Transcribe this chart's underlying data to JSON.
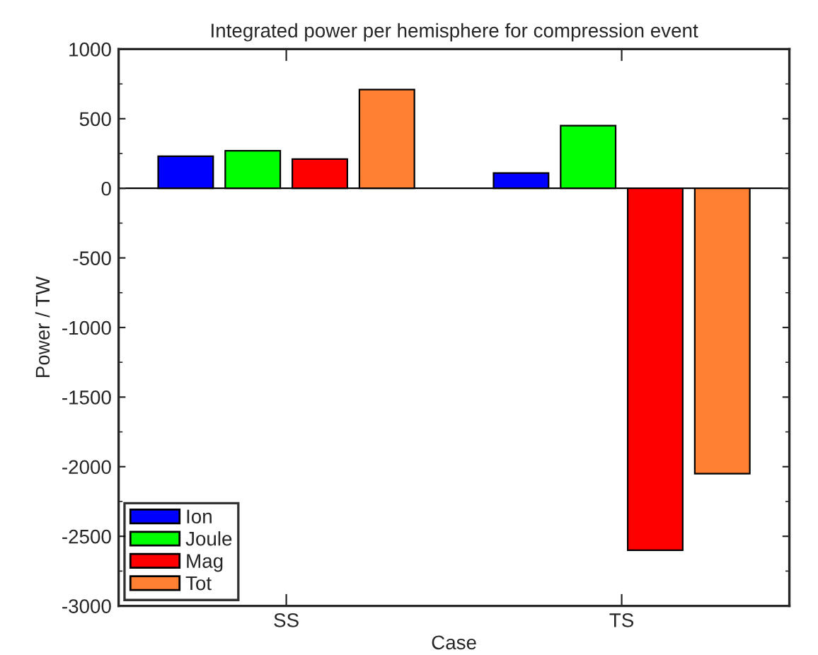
{
  "chart_data": {
    "type": "bar",
    "title": "Integrated power per hemisphere for compression event",
    "xlabel": "Case",
    "ylabel": "Power / TW",
    "categories": [
      "SS",
      "TS"
    ],
    "series": [
      {
        "name": "Ion",
        "color": "#0000ff",
        "values": [
          230,
          110
        ]
      },
      {
        "name": "Joule",
        "color": "#00ff00",
        "values": [
          270,
          450
        ]
      },
      {
        "name": "Mag",
        "color": "#ff0000",
        "values": [
          210,
          -2600
        ]
      },
      {
        "name": "Tot",
        "color": "#ff8033",
        "values": [
          710,
          -2050
        ]
      }
    ],
    "ylim": [
      -3000,
      1000
    ],
    "yticks": [
      -3000,
      -2500,
      -2000,
      -1500,
      -1000,
      -500,
      0,
      500,
      1000
    ],
    "ref_lines": [
      {
        "axis": "y",
        "value": 0,
        "label": null
      }
    ],
    "grid": false,
    "legend": "bottom left"
  }
}
